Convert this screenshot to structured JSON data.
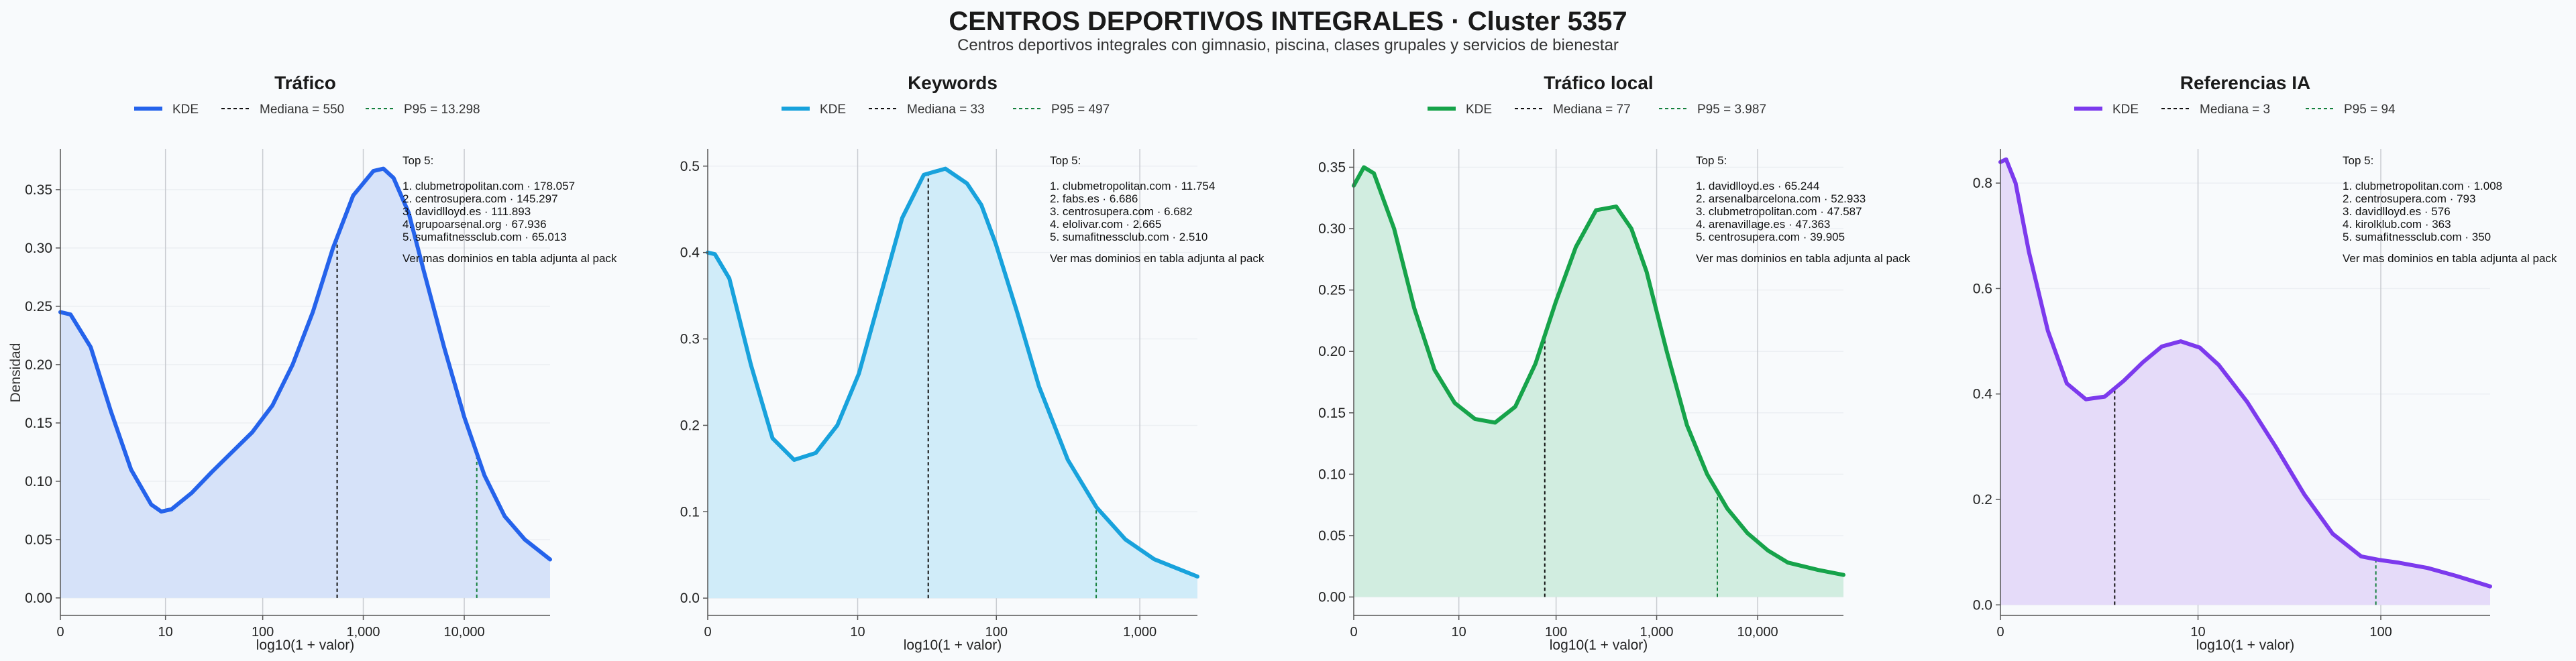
{
  "header": {
    "title": "CENTROS DEPORTIVOS INTEGRALES · Cluster 5357",
    "subtitle": "Centros deportivos integrales con gimnasio, piscina, clases grupales y servicios de bienestar"
  },
  "common": {
    "ylabel": "Densidad",
    "xlabel": "log10(1 + valor)",
    "legend_kde": "KDE",
    "top_title": "Top 5:",
    "top_footer": "Ver mas dominios en tabla adjunta al pack"
  },
  "chart_data": [
    {
      "type": "area",
      "title": "Tráfico",
      "color": "#2563eb",
      "fill": "#d6e2f9",
      "legend": [
        "KDE",
        "Mediana = 550",
        "P95 = 13.298"
      ],
      "median": 2.741,
      "p95": 4.124,
      "xlim": [
        0,
        4.85
      ],
      "ylim": [
        -0.015,
        0.385
      ],
      "xticks": [
        {
          "v": 0,
          "label": "0"
        },
        {
          "v": 1.041,
          "label": "10"
        },
        {
          "v": 2.004,
          "label": "100"
        },
        {
          "v": 3.0,
          "label": "1,000"
        },
        {
          "v": 4.0,
          "label": "10,000"
        }
      ],
      "yticks": [
        {
          "v": 0.0,
          "label": "0.00"
        },
        {
          "v": 0.05,
          "label": "0.05"
        },
        {
          "v": 0.1,
          "label": "0.10"
        },
        {
          "v": 0.15,
          "label": "0.15"
        },
        {
          "v": 0.2,
          "label": "0.20"
        },
        {
          "v": 0.25,
          "label": "0.25"
        },
        {
          "v": 0.3,
          "label": "0.30"
        },
        {
          "v": 0.35,
          "label": "0.35"
        }
      ],
      "x": [
        0,
        0.1,
        0.3,
        0.5,
        0.7,
        0.9,
        1.0,
        1.1,
        1.3,
        1.5,
        1.7,
        1.9,
        2.1,
        2.3,
        2.5,
        2.7,
        2.9,
        3.1,
        3.2,
        3.3,
        3.45,
        3.6,
        3.8,
        4.0,
        4.2,
        4.4,
        4.6,
        4.85
      ],
      "y": [
        0.245,
        0.243,
        0.215,
        0.16,
        0.11,
        0.08,
        0.074,
        0.076,
        0.09,
        0.108,
        0.125,
        0.142,
        0.165,
        0.2,
        0.245,
        0.3,
        0.345,
        0.366,
        0.368,
        0.36,
        0.33,
        0.28,
        0.215,
        0.155,
        0.105,
        0.07,
        0.05,
        0.033
      ],
      "top": [
        "1. clubmetropolitan.com · 178.057",
        "2. centrosupera.com · 145.297",
        "3. davidlloyd.es · 111.893",
        "4. grupoarsenal.org · 67.936",
        "5. sumafitnessclub.com · 65.013"
      ]
    },
    {
      "type": "area",
      "title": "Keywords",
      "color": "#18a2dc",
      "fill": "#d0ecf9",
      "legend": [
        "KDE",
        "Mediana = 33",
        "P95 = 497"
      ],
      "median": 1.531,
      "p95": 2.697,
      "xlim": [
        0,
        3.4
      ],
      "ylim": [
        -0.02,
        0.52
      ],
      "xticks": [
        {
          "v": 0,
          "label": "0"
        },
        {
          "v": 1.041,
          "label": "10"
        },
        {
          "v": 2.004,
          "label": "100"
        },
        {
          "v": 3.0,
          "label": "1,000"
        }
      ],
      "yticks": [
        {
          "v": 0.0,
          "label": "0.0"
        },
        {
          "v": 0.1,
          "label": "0.1"
        },
        {
          "v": 0.2,
          "label": "0.2"
        },
        {
          "v": 0.3,
          "label": "0.3"
        },
        {
          "v": 0.4,
          "label": "0.4"
        },
        {
          "v": 0.5,
          "label": "0.5"
        }
      ],
      "x": [
        0,
        0.05,
        0.15,
        0.3,
        0.45,
        0.6,
        0.75,
        0.9,
        1.05,
        1.2,
        1.35,
        1.5,
        1.65,
        1.8,
        1.9,
        2.0,
        2.15,
        2.3,
        2.5,
        2.7,
        2.9,
        3.1,
        3.4
      ],
      "y": [
        0.4,
        0.398,
        0.37,
        0.27,
        0.185,
        0.16,
        0.168,
        0.2,
        0.26,
        0.35,
        0.44,
        0.49,
        0.497,
        0.48,
        0.455,
        0.41,
        0.33,
        0.245,
        0.16,
        0.105,
        0.068,
        0.045,
        0.025
      ],
      "top": [
        "1. clubmetropolitan.com · 11.754",
        "2. fabs.es · 6.686",
        "3. centrosupera.com · 6.682",
        "4. elolivar.com · 2.665",
        "5. sumafitnessclub.com · 2.510"
      ]
    },
    {
      "type": "area",
      "title": "Tráfico local",
      "color": "#16a34a",
      "fill": "#d1ede0",
      "legend": [
        "KDE",
        "Mediana = 77",
        "P95 = 3.987"
      ],
      "median": 1.892,
      "p95": 3.601,
      "xlim": [
        0,
        4.85
      ],
      "ylim": [
        -0.015,
        0.365
      ],
      "xticks": [
        {
          "v": 0,
          "label": "0"
        },
        {
          "v": 1.041,
          "label": "10"
        },
        {
          "v": 2.004,
          "label": "100"
        },
        {
          "v": 3.0,
          "label": "1,000"
        },
        {
          "v": 4.0,
          "label": "10,000"
        }
      ],
      "yticks": [
        {
          "v": 0.0,
          "label": "0.00"
        },
        {
          "v": 0.05,
          "label": "0.05"
        },
        {
          "v": 0.1,
          "label": "0.10"
        },
        {
          "v": 0.15,
          "label": "0.15"
        },
        {
          "v": 0.2,
          "label": "0.20"
        },
        {
          "v": 0.25,
          "label": "0.25"
        },
        {
          "v": 0.3,
          "label": "0.30"
        },
        {
          "v": 0.35,
          "label": "0.35"
        }
      ],
      "x": [
        0,
        0.1,
        0.2,
        0.4,
        0.6,
        0.8,
        1.0,
        1.2,
        1.4,
        1.6,
        1.8,
        2.0,
        2.2,
        2.4,
        2.6,
        2.75,
        2.9,
        3.1,
        3.3,
        3.5,
        3.7,
        3.9,
        4.1,
        4.3,
        4.6,
        4.85
      ],
      "y": [
        0.335,
        0.35,
        0.345,
        0.3,
        0.235,
        0.185,
        0.158,
        0.145,
        0.142,
        0.155,
        0.19,
        0.24,
        0.285,
        0.315,
        0.318,
        0.3,
        0.265,
        0.2,
        0.14,
        0.1,
        0.072,
        0.052,
        0.038,
        0.028,
        0.022,
        0.018
      ],
      "top": [
        "1. davidlloyd.es · 65.244",
        "2. arsenalbarcelona.com · 52.933",
        "3. clubmetropolitan.com · 47.587",
        "4. arenavillage.es · 47.363",
        "5. centrosupera.com · 39.905"
      ]
    },
    {
      "type": "area",
      "title": "Referencias IA",
      "color": "#7c3aed",
      "fill": "#e5dbf9",
      "legend": [
        "KDE",
        "Mediana = 3",
        "P95 = 94"
      ],
      "median": 0.602,
      "p95": 1.978,
      "xlim": [
        0,
        2.58
      ],
      "ylim": [
        -0.02,
        0.865
      ],
      "xticks": [
        {
          "v": 0,
          "label": "0"
        },
        {
          "v": 1.041,
          "label": "10"
        },
        {
          "v": 2.004,
          "label": "100"
        }
      ],
      "yticks": [
        {
          "v": 0.0,
          "label": "0.0"
        },
        {
          "v": 0.2,
          "label": "0.2"
        },
        {
          "v": 0.4,
          "label": "0.4"
        },
        {
          "v": 0.6,
          "label": "0.6"
        },
        {
          "v": 0.8,
          "label": "0.8"
        }
      ],
      "x": [
        0,
        0.03,
        0.08,
        0.15,
        0.25,
        0.35,
        0.45,
        0.55,
        0.65,
        0.75,
        0.85,
        0.95,
        1.05,
        1.15,
        1.3,
        1.45,
        1.6,
        1.75,
        1.9,
        2.0,
        2.1,
        2.25,
        2.4,
        2.58
      ],
      "y": [
        0.84,
        0.845,
        0.8,
        0.67,
        0.52,
        0.42,
        0.39,
        0.395,
        0.425,
        0.46,
        0.49,
        0.5,
        0.488,
        0.455,
        0.385,
        0.3,
        0.21,
        0.135,
        0.092,
        0.085,
        0.08,
        0.07,
        0.055,
        0.035
      ],
      "top": [
        "1. clubmetropolitan.com · 1.008",
        "2. centrosupera.com · 793",
        "3. davidlloyd.es · 576",
        "4. kirolklub.com · 363",
        "5. sumafitnessclub.com · 350"
      ]
    }
  ]
}
